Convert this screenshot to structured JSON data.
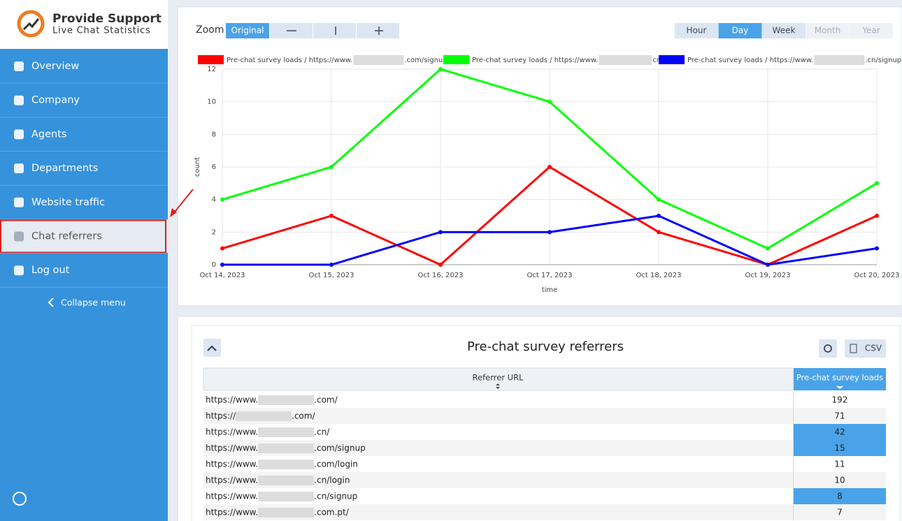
{
  "sidebar": {
    "brand": "Provide Support",
    "tagline": "Live Chat Statistics",
    "menu": [
      "Overview",
      "Company",
      "Agents",
      "Departments",
      "Website traffic",
      "Chat referrers",
      "Log out"
    ],
    "active": 5,
    "collapse": "Collapse menu"
  },
  "zoom": {
    "label": "Zoom",
    "original": "Original"
  },
  "periods": {
    "items": [
      "Hour",
      "Day",
      "Week",
      "Month",
      "Year"
    ],
    "active": 1,
    "disabled": [
      3,
      4
    ]
  },
  "chart_data": {
    "type": "line",
    "categories": [
      "Oct 14, 2023",
      "Oct 15, 2023",
      "Oct 16, 2023",
      "Oct 17, 2023",
      "Oct 18, 2023",
      "Oct 19, 2023",
      "Oct 20, 2023"
    ],
    "series": [
      {
        "name": "Pre-chat survey loads / https://www.",
        "name_end": ".com/signup",
        "color": "#ff0000",
        "values": [
          1,
          3,
          0,
          6,
          2,
          0,
          3
        ]
      },
      {
        "name": "Pre-chat survey loads / https://www.",
        "name_end": "cn/",
        "color": "#00ff00",
        "values": [
          4,
          6,
          12,
          10,
          4,
          1,
          5
        ]
      },
      {
        "name": "Pre-chat survey loads / https://www.",
        "name_end": ".cn/signup",
        "color": "#0000ff",
        "values": [
          0,
          0,
          2,
          2,
          3,
          0,
          1
        ]
      }
    ],
    "ylim": [
      0,
      12
    ],
    "yticks": [
      0,
      2,
      4,
      6,
      8,
      10,
      12
    ],
    "xlabel": "time",
    "ylabel": "count",
    "grid": true
  },
  "table": {
    "title": "Pre-chat survey referrers",
    "csv": "CSV",
    "columns": [
      "Referrer URL",
      "Pre-chat survey loads"
    ],
    "rows": [
      {
        "url_start": "https://www.",
        "url_end": ".com/",
        "loads": 192,
        "highlight": false
      },
      {
        "url_start": "https://",
        "url_end": ".com/",
        "loads": 71,
        "highlight": false
      },
      {
        "url_start": "https://www.",
        "url_end": ".cn/",
        "loads": 42,
        "highlight": true
      },
      {
        "url_start": "https://www.",
        "url_end": ".com/signup",
        "loads": 15,
        "highlight": true
      },
      {
        "url_start": "https://www.",
        "url_end": ".com/login",
        "loads": 11,
        "highlight": false
      },
      {
        "url_start": "https://www.",
        "url_end": ".cn/login",
        "loads": 10,
        "highlight": false
      },
      {
        "url_start": "https://www.",
        "url_end": ".cn/signup",
        "loads": 8,
        "highlight": true
      },
      {
        "url_start": "https://www.",
        "url_end": ".com.pt/",
        "loads": 7,
        "highlight": false
      }
    ]
  }
}
